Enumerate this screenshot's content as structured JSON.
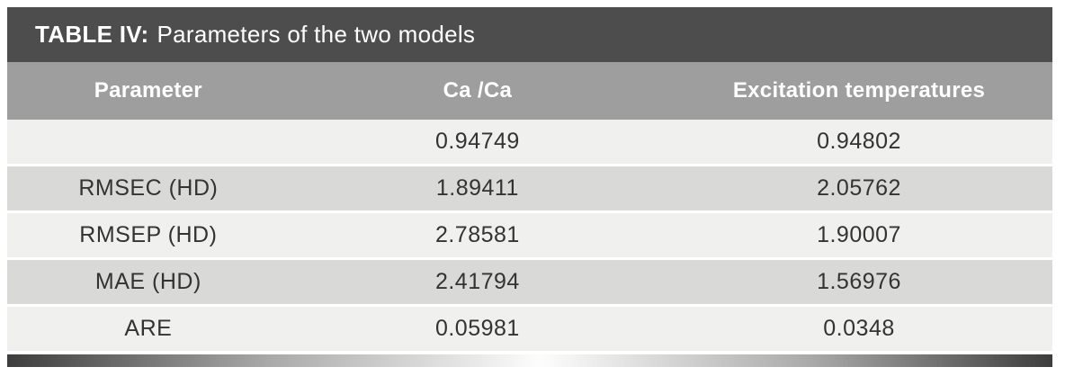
{
  "table": {
    "title_bold": "TABLE IV:",
    "title_rest": "Parameters of the two models",
    "columns": [
      "Parameter",
      "Ca /Ca",
      "Excitation temperatures"
    ],
    "colors": {
      "title_bar": "#4d4d4d",
      "header_bar": "#9e9e9e",
      "row_light": "#f0f0ef",
      "row_dark": "#d9d9d8",
      "title_text": "#ffffff",
      "body_text": "#333333"
    }
  },
  "chart_data": {
    "type": "table",
    "title": "TABLE IV: Parameters of the two models",
    "columns": [
      "Parameter",
      "Ca /Ca",
      "Excitation temperatures"
    ],
    "rows": [
      [
        "",
        "0.94749",
        "0.94802"
      ],
      [
        "RMSEC (HD)",
        "1.89411",
        "2.05762"
      ],
      [
        "RMSEP (HD)",
        "2.78581",
        "1.90007"
      ],
      [
        "MAE (HD)",
        "2.41794",
        "1.56976"
      ],
      [
        "ARE",
        "0.05981",
        "0.0348"
      ]
    ]
  }
}
